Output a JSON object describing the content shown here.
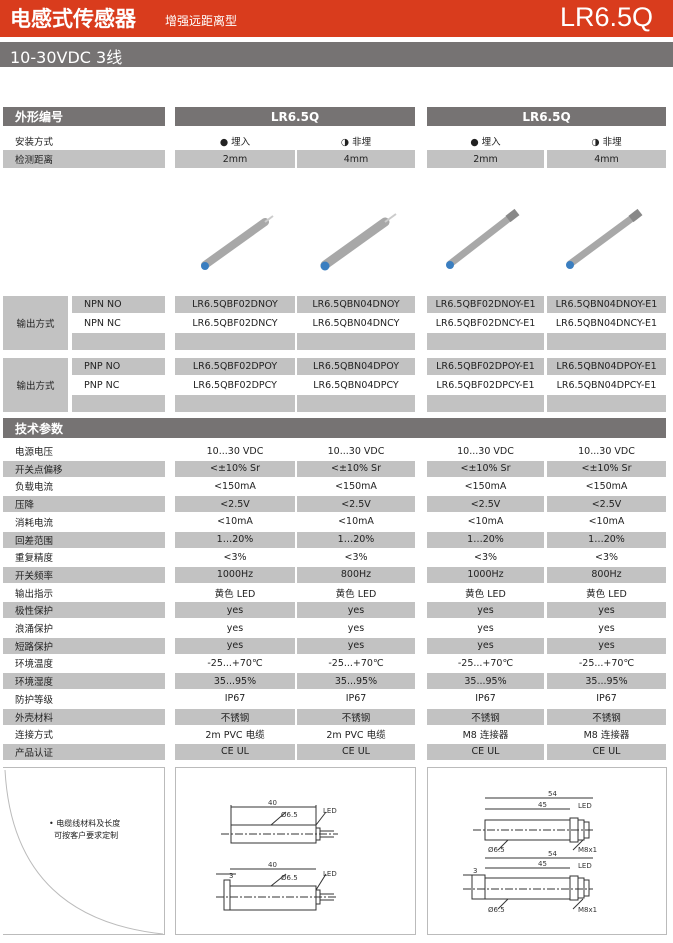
{
  "header": {
    "title": "电感式传感器",
    "subtitle": "增强远距离型",
    "model": "LR6.5Q",
    "voltage": "10-30VDC 3线"
  },
  "colors": {
    "brand": "#d93c1d",
    "header_gray": "#767373",
    "row_gray": "#c2c2c2"
  },
  "shape": {
    "label": "外形编号",
    "groups": [
      "LR6.5Q",
      "LR6.5Q"
    ]
  },
  "mount": {
    "label": "安装方式",
    "values": [
      "● 埋入",
      "◑ 非埋",
      "● 埋入",
      "◑ 非埋"
    ]
  },
  "distance": {
    "label": "检测距离",
    "values": [
      "2mm",
      "4mm",
      "2mm",
      "4mm"
    ]
  },
  "npn": {
    "label": "输出方式",
    "rows": [
      {
        "type": "NPN NO",
        "values": [
          "LR6.5QBF02DNOY",
          "LR6.5QBN04DNOY",
          "LR6.5QBF02DNOY-E1",
          "LR6.5QBN04DNOY-E1"
        ]
      },
      {
        "type": "NPN NC",
        "values": [
          "LR6.5QBF02DNCY",
          "LR6.5QBN04DNCY",
          "LR6.5QBF02DNCY-E1",
          "LR6.5QBN04DNCY-E1"
        ]
      }
    ]
  },
  "pnp": {
    "label": "输出方式",
    "rows": [
      {
        "type": "PNP NO",
        "values": [
          "LR6.5QBF02DPOY",
          "LR6.5QBN04DPOY",
          "LR6.5QBF02DPOY-E1",
          "LR6.5QBN04DPOY-E1"
        ]
      },
      {
        "type": "PNP NC",
        "values": [
          "LR6.5QBF02DPCY",
          "LR6.5QBN04DPCY",
          "LR6.5QBF02DPCY-E1",
          "LR6.5QBN04DPCY-E1"
        ]
      }
    ]
  },
  "specs": {
    "title": "技术参数",
    "rows": [
      {
        "label": "电源电压",
        "values": [
          "10...30 VDC",
          "10...30 VDC",
          "10...30 VDC",
          "10...30 VDC"
        ]
      },
      {
        "label": "开关点偏移",
        "values": [
          "<±10% Sr",
          "<±10% Sr",
          "<±10% Sr",
          "<±10% Sr"
        ]
      },
      {
        "label": "负载电流",
        "values": [
          "<150mA",
          "<150mA",
          "<150mA",
          "<150mA"
        ]
      },
      {
        "label": "压降",
        "values": [
          "<2.5V",
          "<2.5V",
          "<2.5V",
          "<2.5V"
        ]
      },
      {
        "label": "消耗电流",
        "values": [
          "<10mA",
          "<10mA",
          "<10mA",
          "<10mA"
        ]
      },
      {
        "label": "回差范围",
        "values": [
          "1…20%",
          "1…20%",
          "1…20%",
          "1…20%"
        ]
      },
      {
        "label": "重复精度",
        "values": [
          "<3%",
          "<3%",
          "<3%",
          "<3%"
        ]
      },
      {
        "label": "开关频率",
        "values": [
          "1000Hz",
          "800Hz",
          "1000Hz",
          "800Hz"
        ]
      },
      {
        "label": "输出指示",
        "values": [
          "黄色  LED",
          "黄色  LED",
          "黄色  LED",
          "黄色  LED"
        ]
      },
      {
        "label": "极性保护",
        "values": [
          "yes",
          "yes",
          "yes",
          "yes"
        ]
      },
      {
        "label": "浪涌保护",
        "values": [
          "yes",
          "yes",
          "yes",
          "yes"
        ]
      },
      {
        "label": "短路保护",
        "values": [
          "yes",
          "yes",
          "yes",
          "yes"
        ]
      },
      {
        "label": "环境温度",
        "values": [
          "-25...+70℃",
          "-25...+70℃",
          "-25...+70℃",
          "-25...+70℃"
        ]
      },
      {
        "label": "环境湿度",
        "values": [
          "35...95%",
          "35...95%",
          "35...95%",
          "35...95%"
        ]
      },
      {
        "label": "防护等级",
        "values": [
          "IP67",
          "IP67",
          "IP67",
          "IP67"
        ]
      },
      {
        "label": "外壳材料",
        "values": [
          "不锈钢",
          "不锈钢",
          "不锈钢",
          "不锈钢"
        ]
      },
      {
        "label": "连接方式",
        "values": [
          "2m PVC 电缆",
          "2m PVC 电缆",
          "M8 连接器",
          "M8 连接器"
        ]
      },
      {
        "label": "产品认证",
        "values": [
          "CE  UL",
          "CE  UL",
          "CE  UL",
          "CE  UL"
        ]
      }
    ]
  },
  "note": {
    "line1": "电缆线材料及长度",
    "line2": "可按客户要求定制"
  },
  "drawing_cable": {
    "length": "40",
    "diameter": "Ø6.5",
    "led": "LED",
    "flush": "3"
  },
  "drawing_m8": {
    "total": "54",
    "length": "45",
    "diameter": "Ø6.5",
    "led": "LED",
    "thread": "M8x1",
    "flush": "3"
  }
}
